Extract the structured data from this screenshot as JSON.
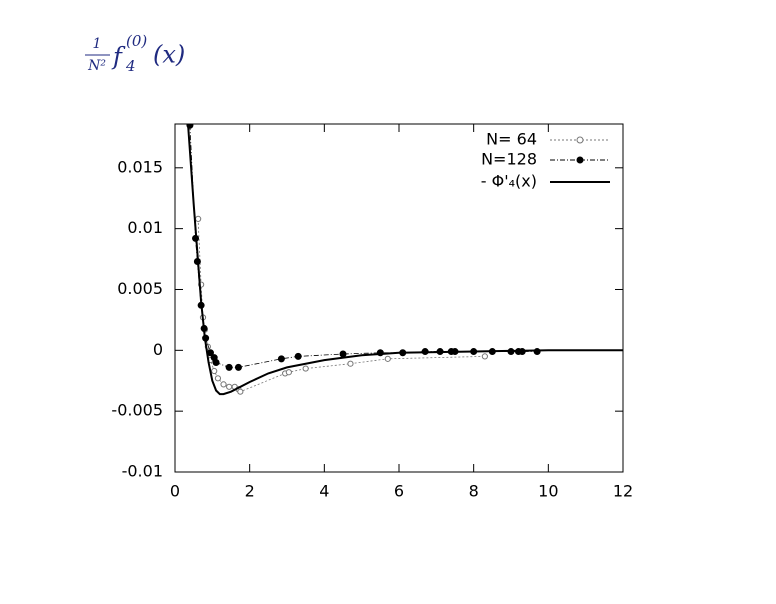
{
  "chart_data": {
    "type": "scatter",
    "title": {
      "numerator": "1",
      "denominator": "N²",
      "function": "f",
      "subscript": "4",
      "superscript": "(0)",
      "argument": "(x)"
    },
    "xlim": [
      0,
      12
    ],
    "xticks": [
      0,
      2,
      4,
      6,
      8,
      10,
      12
    ],
    "ylim": [
      -0.01,
      0.0186
    ],
    "yticks": [
      0.015,
      0.01,
      0.005,
      0,
      -0.005,
      -0.01
    ],
    "legend": "upper right",
    "series": [
      {
        "name": "N= 64",
        "color": "#777777",
        "marker": "open",
        "x": [
          0.62,
          0.7,
          0.75,
          0.8,
          0.88,
          0.95,
          1.05,
          1.15,
          1.3,
          1.45,
          1.6,
          1.7,
          1.75,
          2.95,
          3.05,
          3.5,
          4.7,
          5.7,
          8.3
        ],
        "values": [
          0.0108,
          0.0054,
          0.0027,
          0.0017,
          0.0003,
          -0.0008,
          -0.0017,
          -0.0023,
          -0.0028,
          -0.003,
          -0.003,
          -0.0032,
          -0.0034,
          -0.0019,
          -0.0018,
          -0.0015,
          -0.0011,
          -0.0007,
          -0.0005
        ]
      },
      {
        "name": "N=128",
        "color": "#000000",
        "marker": "filled",
        "x": [
          0.4,
          0.55,
          0.6,
          0.7,
          0.78,
          0.82,
          0.95,
          1.05,
          1.1,
          1.45,
          1.7,
          2.85,
          3.3,
          4.5,
          5.5,
          6.1,
          6.7,
          7.1,
          7.4,
          7.5,
          8.0,
          8.5,
          9.0,
          9.2,
          9.3,
          9.7
        ],
        "values": [
          0.0185,
          0.0092,
          0.0073,
          0.0037,
          0.0018,
          0.001,
          -0.0002,
          -0.0006,
          -0.001,
          -0.0014,
          -0.0014,
          -0.0007,
          -0.0005,
          -0.0003,
          -0.0002,
          -0.0002,
          -0.0001,
          -0.0001,
          -0.0001,
          -0.0001,
          -0.0001,
          -0.0001,
          -0.0001,
          -0.0001,
          -0.0001,
          -0.0001
        ]
      },
      {
        "name": "- Φ'₄(x)",
        "color": "#000000",
        "marker": "line",
        "x": [
          0.35,
          0.5,
          0.6,
          0.7,
          0.8,
          0.9,
          1.0,
          1.1,
          1.2,
          1.3,
          1.5,
          2,
          2.5,
          3,
          4,
          5,
          6,
          8,
          10,
          12
        ],
        "values": [
          0.0185,
          0.012,
          0.008,
          0.004,
          0.001,
          -0.001,
          -0.0025,
          -0.0033,
          -0.0036,
          -0.0036,
          -0.0034,
          -0.0026,
          -0.0019,
          -0.0014,
          -0.0008,
          -0.0004,
          -0.0002,
          -0.0001,
          0,
          0
        ]
      }
    ]
  }
}
